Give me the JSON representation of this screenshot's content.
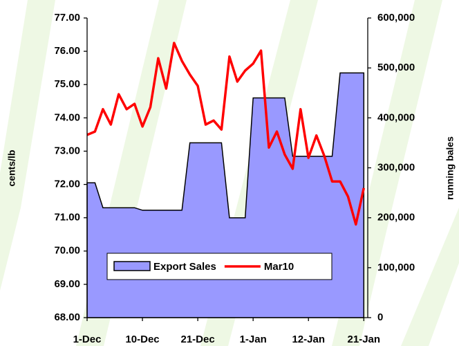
{
  "chart_data": {
    "type": "line",
    "ylabel": "cents/lb",
    "y2label": "running bales",
    "x": [
      0,
      1,
      2,
      3,
      4,
      5,
      6,
      7,
      8,
      9,
      10,
      11,
      12,
      13,
      14,
      15,
      16,
      17,
      18,
      19,
      20,
      21,
      22,
      23,
      24,
      25,
      26,
      27,
      28,
      29,
      30,
      31,
      32,
      33,
      34,
      35
    ],
    "xlim": [
      0,
      35.5
    ],
    "xticks": [
      {
        "value": 0,
        "label": "1-Dec"
      },
      {
        "value": 7,
        "label": "10-Dec"
      },
      {
        "value": 14,
        "label": "21-Dec"
      },
      {
        "value": 21,
        "label": "1-Jan"
      },
      {
        "value": 28,
        "label": "12-Jan"
      },
      {
        "value": 35,
        "label": "21-Jan"
      }
    ],
    "ylim": [
      68,
      77
    ],
    "yticks": [
      {
        "value": 68,
        "label": "68.00"
      },
      {
        "value": 69,
        "label": "69.00"
      },
      {
        "value": 70,
        "label": "70.00"
      },
      {
        "value": 71,
        "label": "71.00"
      },
      {
        "value": 72,
        "label": "72.00"
      },
      {
        "value": 73,
        "label": "73.00"
      },
      {
        "value": 74,
        "label": "74.00"
      },
      {
        "value": 75,
        "label": "75.00"
      },
      {
        "value": 76,
        "label": "76.00"
      },
      {
        "value": 77,
        "label": "77.00"
      }
    ],
    "y2lim": [
      0,
      600000
    ],
    "y2ticks": [
      0,
      {
        "value": 100000,
        "label": "100,000"
      },
      {
        "value": 200000,
        "label": "200,000"
      },
      {
        "value": 300000,
        "label": "300,000"
      },
      {
        "value": 400000,
        "label": "400,000"
      },
      {
        "value": 500000,
        "label": "500,000"
      },
      {
        "value": 600000,
        "label": "600,000"
      }
    ],
    "series": [
      {
        "name": "Export Sales",
        "type": "area",
        "axis": "y2",
        "color": "#9999ff",
        "values": [
          270000,
          270000,
          220000,
          220000,
          220000,
          220000,
          220000,
          215000,
          215000,
          215000,
          215000,
          215000,
          215000,
          350000,
          350000,
          350000,
          350000,
          350000,
          200000,
          200000,
          200000,
          440000,
          440000,
          440000,
          440000,
          440000,
          323000,
          323000,
          323000,
          323000,
          323000,
          323000,
          490000,
          490000,
          490000,
          490000
        ]
      },
      {
        "name": "Mar10",
        "type": "line",
        "color": "#ff0000",
        "values": [
          73.49,
          73.59,
          74.26,
          73.8,
          74.71,
          74.26,
          74.42,
          73.74,
          74.32,
          75.79,
          74.88,
          76.25,
          75.71,
          75.3,
          74.96,
          73.8,
          73.92,
          73.65,
          75.84,
          75.09,
          75.42,
          75.63,
          76.02,
          73.11,
          73.59,
          72.9,
          72.47,
          74.26,
          72.8,
          73.47,
          72.86,
          72.09,
          72.09,
          71.64,
          70.8,
          71.89
        ]
      }
    ],
    "legend": "lower-center"
  }
}
